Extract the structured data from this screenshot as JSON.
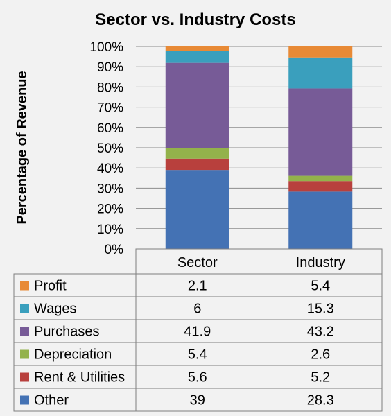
{
  "chart_data": {
    "type": "bar",
    "stacked": true,
    "percent_stacked": true,
    "title": "Sector vs. Industry Costs",
    "ylabel": "Percentage of Revenue",
    "ylim": [
      0,
      100
    ],
    "y_ticks": [
      "0%",
      "10%",
      "20%",
      "30%",
      "40%",
      "50%",
      "60%",
      "70%",
      "80%",
      "90%",
      "100%"
    ],
    "grid": true,
    "categories": [
      "Sector",
      "Industry"
    ],
    "legend_placement": "data-table",
    "series": [
      {
        "name": "Other",
        "color": "#4472b4",
        "values": [
          39,
          28.3
        ]
      },
      {
        "name": "Rent & Utilities",
        "color": "#b8403d",
        "values": [
          5.6,
          5.2
        ]
      },
      {
        "name": "Depreciation",
        "color": "#93b24b",
        "values": [
          5.4,
          2.6
        ]
      },
      {
        "name": "Purchases",
        "color": "#775b97",
        "values": [
          41.9,
          43.2
        ]
      },
      {
        "name": "Wages",
        "color": "#3a9fbd",
        "values": [
          6,
          15.3
        ]
      },
      {
        "name": "Profit",
        "color": "#e88a36",
        "values": [
          2.1,
          5.4
        ]
      }
    ],
    "table_labels": {
      "Sector": [
        "2.1",
        "6",
        "41.9",
        "5.4",
        "5.6",
        "39"
      ],
      "Industry": [
        "5.4",
        "15.3",
        "43.2",
        "2.6",
        "5.2",
        "28.3"
      ]
    }
  }
}
